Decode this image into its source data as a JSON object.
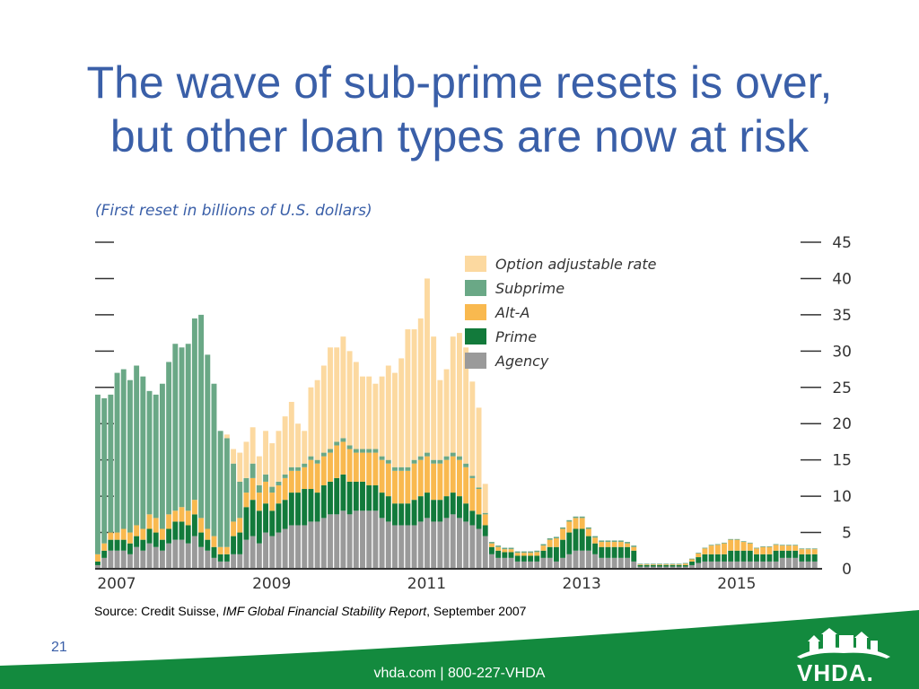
{
  "slide": {
    "title_line1": "The wave of sub-prime resets is over,",
    "title_line2": "but other loan types are now at risk",
    "page_number": "21",
    "footer": "vhda.com | 800-227-VHDA",
    "logo_text": "VHDA."
  },
  "source": {
    "prefix": "Source: Credit Suisse, ",
    "publication": "IMF Global Financial Stability Report",
    "suffix": ", September 2007"
  },
  "colors": {
    "title": "#3a5fa8",
    "option_arm": "#fcd9a0",
    "subprime": "#6aa886",
    "alt_a": "#f9b94f",
    "prime": "#127a3b",
    "agency": "#9a9a9a",
    "footer_green": "#138a3e"
  },
  "chart_data": {
    "type": "bar",
    "stacked": true,
    "title": "(First reset in billions of U.S. dollars)",
    "x_tick_labels": [
      "2007",
      "2009",
      "2011",
      "2013",
      "2015"
    ],
    "y_ticks": [
      0,
      5,
      10,
      15,
      20,
      25,
      30,
      35,
      40,
      45
    ],
    "ylim": [
      0,
      45
    ],
    "y_axis_side": "right",
    "legend_position": "top-right",
    "grid": false,
    "months_start": "2007-01",
    "series": [
      {
        "name": "Agency",
        "color": "#9a9a9a",
        "values": [
          0.5,
          1.5,
          2.5,
          2.5,
          2.5,
          2,
          3,
          2.5,
          3.5,
          3,
          2.5,
          3.5,
          4,
          4,
          3.5,
          4.5,
          3,
          2.5,
          1.5,
          1,
          1,
          2,
          2,
          4,
          4.5,
          3.5,
          5,
          4.5,
          5,
          5.5,
          6,
          6,
          6,
          6.5,
          6.5,
          7,
          7.5,
          7.5,
          8,
          7.5,
          8,
          8,
          8,
          8,
          7,
          6.5,
          6,
          6,
          6,
          6,
          6.5,
          7,
          6.5,
          6.5,
          7,
          7.5,
          7,
          6.5,
          6,
          5.5,
          4.5,
          2,
          1.5,
          1.5,
          1.5,
          1,
          1,
          1,
          1,
          1.5,
          1.5,
          1,
          1.5,
          2,
          2.5,
          2.5,
          2.5,
          2,
          1.5,
          1.5,
          1.5,
          1.5,
          1.5,
          1,
          0.3,
          0.3,
          0.3,
          0.3,
          0.3,
          0.3,
          0.3,
          0.3,
          0.5,
          0.8,
          1,
          1,
          1,
          1,
          1,
          1,
          1,
          1,
          1,
          1,
          1,
          1,
          1.5,
          1.5,
          1.5,
          1,
          1,
          1
        ]
      },
      {
        "name": "Prime",
        "color": "#127a3b",
        "values": [
          0.5,
          1,
          1.5,
          1.5,
          1.5,
          1.5,
          1.5,
          1.5,
          2,
          2,
          1.5,
          2,
          2.5,
          2.5,
          2.5,
          3,
          2,
          1.5,
          1.5,
          1,
          1,
          2.5,
          3,
          4.5,
          5,
          4.5,
          4,
          3.5,
          4,
          4,
          4.5,
          4.5,
          5,
          4.5,
          4,
          4.5,
          4.5,
          5,
          5,
          4.5,
          4,
          4,
          3.5,
          3.5,
          3.5,
          3.5,
          3,
          3,
          3,
          3.5,
          3.5,
          3.5,
          3,
          3,
          3,
          3,
          3,
          2.5,
          2,
          2,
          1.5,
          1,
          1,
          0.8,
          0.8,
          0.8,
          0.8,
          0.8,
          0.8,
          1,
          1.5,
          2,
          2.5,
          3,
          3,
          3,
          2,
          1.5,
          1.5,
          1.5,
          1.5,
          1.5,
          1.5,
          1.5,
          0.2,
          0.2,
          0.2,
          0.2,
          0.2,
          0.2,
          0.2,
          0.2,
          0.5,
          0.8,
          1,
          1,
          1,
          1,
          1.5,
          1.5,
          1.5,
          1.5,
          1,
          1,
          1,
          1.5,
          1,
          1,
          1,
          1,
          1,
          1
        ]
      },
      {
        "name": "Alt-A",
        "color": "#f9b94f",
        "values": [
          1,
          1,
          1,
          1,
          1.5,
          1.5,
          1.5,
          1.5,
          2,
          2,
          1.5,
          2,
          1.5,
          2,
          2,
          2,
          2,
          1.5,
          1.5,
          1,
          1,
          2,
          2,
          2,
          3,
          2.5,
          3,
          2.5,
          2.5,
          3,
          3,
          3,
          3,
          4,
          4,
          4,
          4,
          4.5,
          4.5,
          4.5,
          4,
          4,
          4.5,
          4.5,
          4.5,
          4.5,
          4.5,
          4.5,
          4.5,
          5,
          5,
          5,
          5,
          5,
          5,
          5,
          5,
          5,
          4.5,
          3.5,
          1.5,
          0.5,
          0.5,
          0.4,
          0.4,
          0.4,
          0.4,
          0.4,
          0.5,
          0.7,
          1,
          1.2,
          1.5,
          1.5,
          1.5,
          1.5,
          1,
          0.8,
          0.7,
          0.7,
          0.7,
          0.7,
          0.5,
          0.5,
          0.1,
          0.1,
          0.1,
          0.1,
          0.1,
          0.1,
          0.1,
          0.2,
          0.3,
          0.5,
          0.8,
          1.2,
          1.3,
          1.5,
          1.5,
          1.5,
          1.2,
          1,
          0.8,
          1,
          1,
          0.8,
          0.7,
          0.7,
          0.7,
          0.7,
          0.7,
          0.7
        ]
      },
      {
        "name": "Subprime",
        "color": "#6aa886",
        "values": [
          22,
          20,
          19,
          22,
          22,
          21,
          22,
          21,
          17,
          17,
          20,
          21,
          23,
          22,
          23,
          25,
          28,
          24,
          21,
          16,
          15,
          8,
          5,
          2,
          2,
          1,
          1,
          0.8,
          0.5,
          0.5,
          0.5,
          0.5,
          0.5,
          0.5,
          0.5,
          0.5,
          0.5,
          0.5,
          0.5,
          0.5,
          0.5,
          0.5,
          0.5,
          0.5,
          0.5,
          0.5,
          0.5,
          0.5,
          0.5,
          0.5,
          0.5,
          0.5,
          0.5,
          0.5,
          0.5,
          0.5,
          0.5,
          0.5,
          0.3,
          0.2,
          0.2,
          0.2,
          0.2,
          0.2,
          0.2,
          0.2,
          0.2,
          0.2,
          0.2,
          0.2,
          0.2,
          0.2,
          0.2,
          0.2,
          0.2,
          0.2,
          0.2,
          0.2,
          0.2,
          0.2,
          0.2,
          0.2,
          0.2,
          0.2,
          0.1,
          0.1,
          0.1,
          0.1,
          0.1,
          0.1,
          0.1,
          0.1,
          0.1,
          0.1,
          0.1,
          0.1,
          0.1,
          0.1,
          0.1,
          0.1,
          0.1,
          0.1,
          0.1,
          0.1,
          0.1,
          0.1,
          0.1,
          0.1,
          0.1,
          0.1,
          0.1,
          0.1
        ]
      },
      {
        "name": "Option adjustable rate",
        "color": "#fcd9a0",
        "values": [
          0,
          0,
          0,
          0,
          0,
          0,
          0,
          0,
          0,
          0,
          0,
          0,
          0,
          0,
          0,
          0,
          0,
          0,
          0,
          0,
          0.5,
          2,
          4,
          5,
          5,
          4,
          6,
          6,
          7,
          8,
          9,
          6,
          4.5,
          9.5,
          11,
          12,
          14,
          13,
          14,
          13,
          12,
          10,
          10,
          9,
          11,
          13,
          13,
          15,
          19,
          18,
          19,
          24,
          17,
          11,
          12,
          16,
          17,
          16,
          13,
          11,
          4,
          0,
          0,
          0,
          0,
          0,
          0,
          0,
          0,
          0,
          0,
          0,
          0,
          0,
          0,
          0,
          0,
          0,
          0,
          0,
          0,
          0,
          0,
          0,
          0,
          0,
          0,
          0,
          0,
          0,
          0,
          0,
          0,
          0,
          0,
          0,
          0,
          0,
          0,
          0,
          0,
          0,
          0,
          0,
          0,
          0,
          0,
          0,
          0,
          0,
          0,
          0
        ]
      }
    ],
    "legend": [
      "Option adjustable rate",
      "Subprime",
      "Alt-A",
      "Prime",
      "Agency"
    ]
  }
}
